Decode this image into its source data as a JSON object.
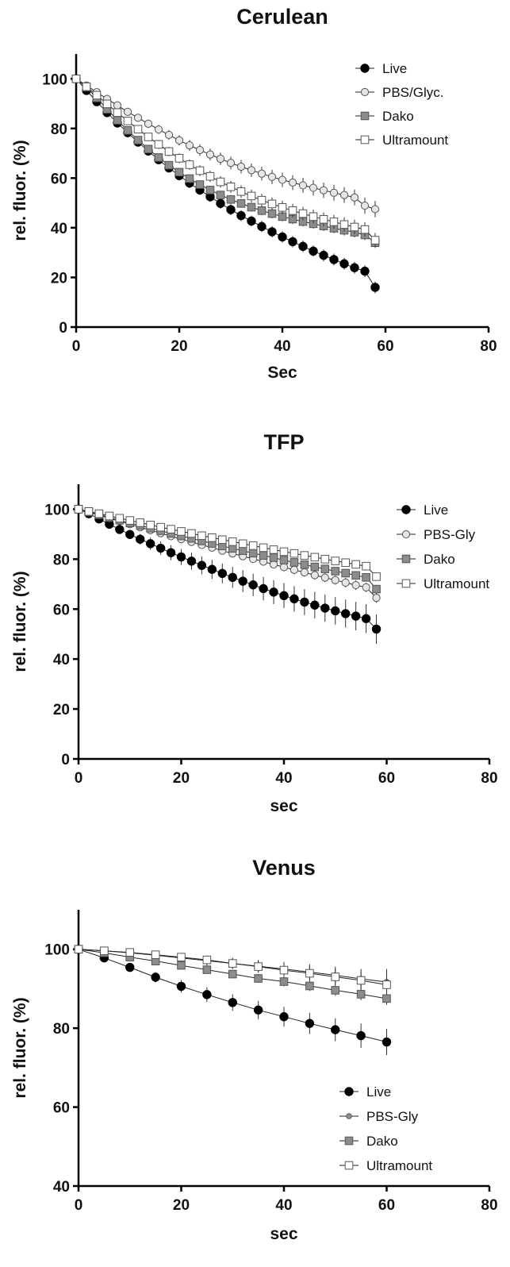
{
  "chart_data": [
    {
      "type": "line",
      "title": "Cerulean",
      "xlabel": "Sec",
      "ylabel": "rel. fluor. (%)",
      "xlim": [
        0,
        80
      ],
      "ylim": [
        0,
        110
      ],
      "xticks": [
        0,
        20,
        40,
        60,
        80
      ],
      "yticks": [
        0,
        20,
        40,
        60,
        80,
        100
      ],
      "grid": false,
      "legend_position": "top-right",
      "x": [
        0,
        2,
        4,
        6,
        8,
        10,
        12,
        14,
        16,
        18,
        20,
        22,
        24,
        26,
        28,
        30,
        32,
        34,
        36,
        38,
        40,
        42,
        44,
        46,
        48,
        50,
        52,
        54,
        56,
        58
      ],
      "series": [
        {
          "name": "Live",
          "marker": "filled-circle",
          "values": [
            100,
            95.3,
            90.8,
            86.4,
            82.2,
            78.3,
            74.5,
            70.9,
            67.4,
            64.1,
            61,
            58,
            55.2,
            52.5,
            49.8,
            47.3,
            44.9,
            42.7,
            40.5,
            38.4,
            36.3,
            34.4,
            32.5,
            30.6,
            28.9,
            27.2,
            25.5,
            23.9,
            22.5,
            16
          ],
          "errors": [
            0,
            0.5,
            0.7,
            0.9,
            1.1,
            1.3,
            1.5,
            1.6,
            1.7,
            1.8,
            1.9,
            2,
            2,
            2.1,
            2.1,
            2.2,
            2.2,
            2.2,
            2.3,
            2.3,
            2.3,
            2.3,
            2.3,
            2.3,
            2.4,
            2.4,
            2.4,
            2.4,
            2.4,
            2.4
          ]
        },
        {
          "name": "PBS/Glyc.",
          "marker": "open-circle-gray",
          "values": [
            100,
            97.3,
            94.6,
            91.9,
            89.3,
            86.7,
            84.3,
            81.9,
            79.6,
            77.4,
            75.2,
            73.2,
            71.3,
            69.5,
            67.8,
            66.1,
            64.6,
            63.2,
            61.8,
            60.5,
            59.3,
            58.2,
            57.1,
            56.1,
            55.1,
            54.1,
            53.2,
            52.2,
            48.9,
            47.5
          ],
          "errors": [
            0,
            0.5,
            0.7,
            0.9,
            1.1,
            1.3,
            1.5,
            1.7,
            1.8,
            2,
            2.1,
            2.2,
            2.3,
            2.4,
            2.5,
            2.6,
            2.7,
            2.7,
            2.8,
            2.9,
            2.9,
            3,
            3,
            3.1,
            3.1,
            3.2,
            3.2,
            3.2,
            3.3,
            3.3
          ]
        },
        {
          "name": "Dako",
          "marker": "filled-square-gray",
          "values": [
            100,
            96.6,
            92.3,
            87.7,
            83.3,
            79.2,
            75.3,
            71.7,
            68.3,
            65.2,
            62.4,
            59.8,
            57.4,
            55.2,
            53.2,
            51.4,
            49.8,
            48.3,
            46.9,
            45.7,
            44.5,
            43.5,
            42.5,
            41.6,
            40.7,
            39.8,
            39,
            38.2,
            37.1,
            34
          ],
          "errors": [
            0,
            0.5,
            0.7,
            0.9,
            1,
            1.1,
            1.2,
            1.3,
            1.4,
            1.5,
            1.5,
            1.6,
            1.6,
            1.7,
            1.7,
            1.8,
            1.8,
            1.8,
            1.9,
            1.9,
            1.9,
            2,
            2,
            2,
            2,
            2,
            2.1,
            2.1,
            2.1,
            2.1
          ]
        },
        {
          "name": "Ultramount",
          "marker": "open-square",
          "values": [
            100,
            96.8,
            93.4,
            89.9,
            86.4,
            83,
            79.7,
            76.6,
            73.6,
            70.7,
            68,
            65.4,
            63,
            60.7,
            58.5,
            56.5,
            54.6,
            52.8,
            51.1,
            49.6,
            48.2,
            46.9,
            45.7,
            44.5,
            43.4,
            42.4,
            41.3,
            40.3,
            39.3,
            35
          ],
          "errors": [
            0,
            0.5,
            0.7,
            0.9,
            1.1,
            1.3,
            1.5,
            1.6,
            1.8,
            1.9,
            2,
            2.1,
            2.2,
            2.3,
            2.3,
            2.4,
            2.5,
            2.5,
            2.6,
            2.6,
            2.7,
            2.7,
            2.7,
            2.8,
            2.8,
            2.8,
            2.9,
            2.9,
            2.9,
            2.9
          ]
        }
      ]
    },
    {
      "type": "line",
      "title": "TFP",
      "xlabel": "sec",
      "ylabel": "rel. fluor. (%)",
      "xlim": [
        0,
        80
      ],
      "ylim": [
        0,
        110
      ],
      "xticks": [
        0,
        20,
        40,
        60,
        80
      ],
      "yticks": [
        0,
        20,
        40,
        60,
        80,
        100
      ],
      "grid": false,
      "legend_position": "top-right",
      "x": [
        0,
        2,
        4,
        6,
        8,
        10,
        12,
        14,
        16,
        18,
        20,
        22,
        24,
        26,
        28,
        30,
        32,
        34,
        36,
        38,
        40,
        42,
        44,
        46,
        48,
        50,
        52,
        54,
        56,
        58
      ],
      "series": [
        {
          "name": "Live",
          "marker": "filled-circle",
          "values": [
            100,
            98.2,
            96.1,
            94,
            91.9,
            89.9,
            88,
            86.2,
            84.4,
            82.6,
            80.9,
            79.2,
            77.5,
            75.9,
            74.3,
            72.7,
            71.2,
            69.7,
            68.2,
            66.8,
            65.4,
            64.1,
            62.8,
            61.6,
            60.4,
            59.3,
            58.2,
            57.2,
            56.2,
            52
          ],
          "errors": [
            0,
            0.6,
            0.9,
            1.2,
            1.5,
            1.8,
            2.1,
            2.4,
            2.7,
            3,
            3.2,
            3.4,
            3.6,
            3.8,
            4,
            4.2,
            4.4,
            4.5,
            4.7,
            4.8,
            5,
            5.1,
            5.2,
            5.3,
            5.4,
            5.5,
            5.6,
            5.7,
            5.8,
            5.9
          ]
        },
        {
          "name": "PBS-Gly",
          "marker": "open-circle-gray",
          "values": [
            100,
            98.8,
            97.6,
            96.4,
            95.2,
            94,
            92.8,
            91.6,
            90.4,
            89.2,
            88,
            86.9,
            85.7,
            84.6,
            83.4,
            82.3,
            81.2,
            80.1,
            79,
            77.9,
            76.8,
            75.7,
            74.7,
            73.6,
            72.6,
            71.6,
            70.6,
            69.6,
            68.7,
            64.5
          ],
          "errors": [
            0,
            0.3,
            0.4,
            0.5,
            0.6,
            0.7,
            0.8,
            0.9,
            1,
            1.1,
            1.1,
            1.2,
            1.3,
            1.3,
            1.4,
            1.4,
            1.5,
            1.5,
            1.6,
            1.6,
            1.7,
            1.7,
            1.7,
            1.8,
            1.8,
            1.8,
            1.9,
            1.9,
            1.9,
            2
          ]
        },
        {
          "name": "Dako",
          "marker": "filled-square-gray",
          "values": [
            100,
            98.9,
            97.8,
            96.7,
            95.6,
            94.5,
            93.5,
            92.4,
            91.4,
            90.3,
            89.3,
            88.3,
            87.3,
            86.3,
            85.3,
            84.3,
            83.4,
            82.4,
            81.5,
            80.6,
            79.6,
            78.7,
            77.8,
            76.9,
            76.1,
            75.2,
            74.4,
            73.5,
            72.7,
            68
          ],
          "errors": [
            0,
            0.3,
            0.4,
            0.5,
            0.6,
            0.7,
            0.8,
            0.9,
            0.9,
            1,
            1.1,
            1.1,
            1.2,
            1.2,
            1.3,
            1.3,
            1.4,
            1.4,
            1.4,
            1.5,
            1.5,
            1.5,
            1.6,
            1.6,
            1.6,
            1.6,
            1.7,
            1.7,
            1.7,
            1.7
          ]
        },
        {
          "name": "Ultramount",
          "marker": "open-square",
          "values": [
            100,
            99.1,
            98.2,
            97.3,
            96.4,
            95.5,
            94.6,
            93.7,
            92.8,
            92,
            91.1,
            90.3,
            89.4,
            88.6,
            87.8,
            87,
            86.2,
            85.4,
            84.6,
            83.8,
            83,
            82.3,
            81.5,
            80.8,
            80,
            79.3,
            78.6,
            77.9,
            77.2,
            73
          ],
          "errors": [
            0,
            0.2,
            0.3,
            0.4,
            0.5,
            0.5,
            0.6,
            0.6,
            0.7,
            0.7,
            0.8,
            0.8,
            0.8,
            0.9,
            0.9,
            0.9,
            1,
            1,
            1,
            1,
            1.1,
            1.1,
            1.1,
            1.1,
            1.1,
            1.2,
            1.2,
            1.2,
            1.2,
            1.2
          ]
        }
      ]
    },
    {
      "type": "line",
      "title": "Venus",
      "xlabel": "sec",
      "ylabel": "rel. fluor. (%)",
      "xlim": [
        0,
        80
      ],
      "ylim": [
        40,
        110
      ],
      "xticks": [
        0,
        20,
        40,
        60,
        80
      ],
      "yticks": [
        40,
        60,
        80,
        100
      ],
      "grid": false,
      "legend_position": "bottom-right",
      "x": [
        0,
        5,
        10,
        15,
        20,
        25,
        30,
        35,
        40,
        45,
        50,
        55,
        60
      ],
      "series": [
        {
          "name": "Live",
          "marker": "filled-circle",
          "values": [
            100,
            97.8,
            95.4,
            92.9,
            90.6,
            88.5,
            86.5,
            84.6,
            82.9,
            81.2,
            79.6,
            78.1,
            76.5
          ],
          "errors": [
            0,
            0.7,
            1.0,
            1.3,
            1.6,
            1.9,
            2.1,
            2.3,
            2.5,
            2.7,
            2.9,
            3.1,
            3.3
          ]
        },
        {
          "name": "PBS-Gly",
          "marker": "small-gray-circle",
          "values": [
            100,
            99.6,
            99.1,
            98.5,
            97.8,
            97.1,
            96.4,
            95.7,
            95,
            94.2,
            93.4,
            92.5,
            91.7
          ],
          "errors": [
            0,
            0.4,
            0.6,
            0.8,
            1,
            1.2,
            1.4,
            1.6,
            1.8,
            2.0,
            2.2,
            2.5,
            3.3
          ]
        },
        {
          "name": "Dako",
          "marker": "filled-square-gray",
          "values": [
            100,
            99.1,
            98,
            97,
            95.9,
            94.8,
            93.7,
            92.6,
            91.8,
            90.7,
            89.6,
            88.6,
            87.5
          ],
          "errors": [
            0,
            0.3,
            0.5,
            0.6,
            0.8,
            0.9,
            1.0,
            1.1,
            1.2,
            1.3,
            1.4,
            1.5,
            1.6
          ]
        },
        {
          "name": "Ultramount",
          "marker": "open-square",
          "values": [
            100,
            99.6,
            99.2,
            98.6,
            98,
            97.3,
            96.4,
            95.6,
            94.7,
            93.9,
            93,
            92.1,
            91
          ],
          "errors": [
            0,
            0.3,
            0.5,
            0.7,
            0.9,
            1.1,
            1.3,
            1.5,
            1.7,
            1.9,
            2.1,
            2.3,
            2.5
          ]
        }
      ]
    }
  ]
}
